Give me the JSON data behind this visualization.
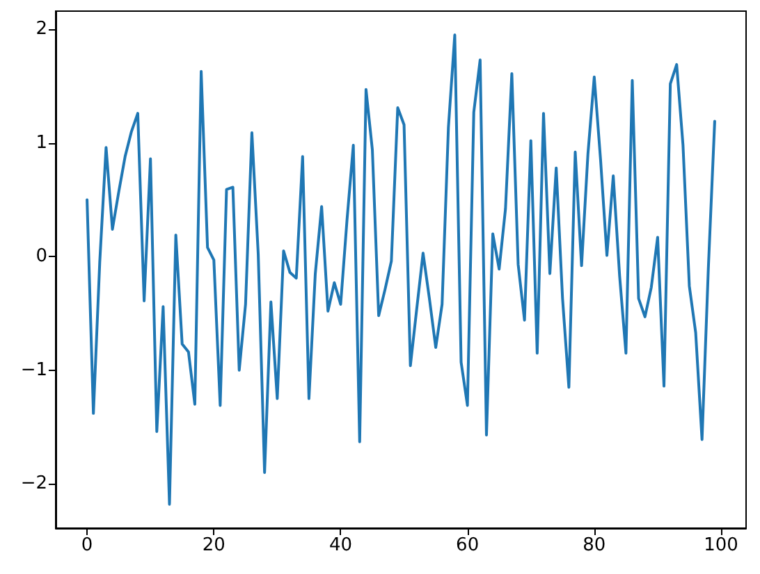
{
  "chart_data": {
    "type": "line",
    "line_style": "solid",
    "x": [
      0,
      1,
      2,
      3,
      4,
      5,
      6,
      7,
      8,
      9,
      10,
      11,
      12,
      13,
      14,
      15,
      16,
      17,
      18,
      19,
      20,
      21,
      22,
      23,
      24,
      25,
      26,
      27,
      28,
      29,
      30,
      31,
      32,
      33,
      34,
      35,
      36,
      37,
      38,
      39,
      40,
      41,
      42,
      43,
      44,
      45,
      46,
      47,
      48,
      49,
      50,
      51,
      52,
      53,
      54,
      55,
      56,
      57,
      58,
      59,
      60,
      61,
      62,
      63,
      64,
      65,
      66,
      67,
      68,
      69,
      70,
      71,
      72,
      73,
      74,
      75,
      76,
      77,
      78,
      79,
      80,
      81,
      82,
      83,
      84,
      85,
      86,
      87,
      88,
      89,
      90,
      91,
      92,
      93,
      94,
      95,
      96,
      97,
      98,
      99
    ],
    "series": [
      {
        "color": "#1f77b4",
        "values": [
          0.5,
          -1.38,
          -0.05,
          0.96,
          0.24,
          0.57,
          0.88,
          1.1,
          1.26,
          -0.39,
          0.86,
          -1.54,
          -0.44,
          -2.18,
          0.19,
          -0.77,
          -0.84,
          -1.3,
          1.63,
          0.08,
          -0.03,
          -1.31,
          0.59,
          0.61,
          -1.0,
          -0.42,
          1.09,
          0.02,
          -1.9,
          -0.4,
          -1.25,
          0.05,
          -0.14,
          -0.19,
          0.88,
          -1.25,
          -0.15,
          0.44,
          -0.48,
          -0.23,
          -0.42,
          0.32,
          0.98,
          -1.63,
          1.47,
          0.94,
          -0.52,
          -0.29,
          -0.04,
          1.31,
          1.16,
          -0.96,
          -0.46,
          0.03,
          -0.37,
          -0.8,
          -0.42,
          1.14,
          1.95,
          -0.93,
          -1.31,
          1.27,
          1.73,
          -1.57,
          0.2,
          -0.11,
          0.42,
          1.61,
          -0.07,
          -0.56,
          1.02,
          -0.85,
          1.26,
          -0.15,
          0.78,
          -0.37,
          -1.15,
          0.92,
          -0.08,
          0.9,
          1.58,
          0.85,
          0.01,
          0.71,
          -0.17,
          -0.85,
          1.55,
          -0.37,
          -0.53,
          -0.27,
          0.17,
          -1.14,
          1.52,
          1.69,
          0.98,
          -0.26,
          -0.67,
          -1.61,
          -0.1,
          1.19
        ]
      }
    ],
    "xlim": [
      -4.95,
      103.95
    ],
    "xticks": [
      0,
      20,
      40,
      60,
      80,
      100
    ],
    "ylim": [
      -2.39,
      2.16
    ],
    "yticks": [
      -2,
      -1,
      0,
      1,
      2
    ]
  }
}
